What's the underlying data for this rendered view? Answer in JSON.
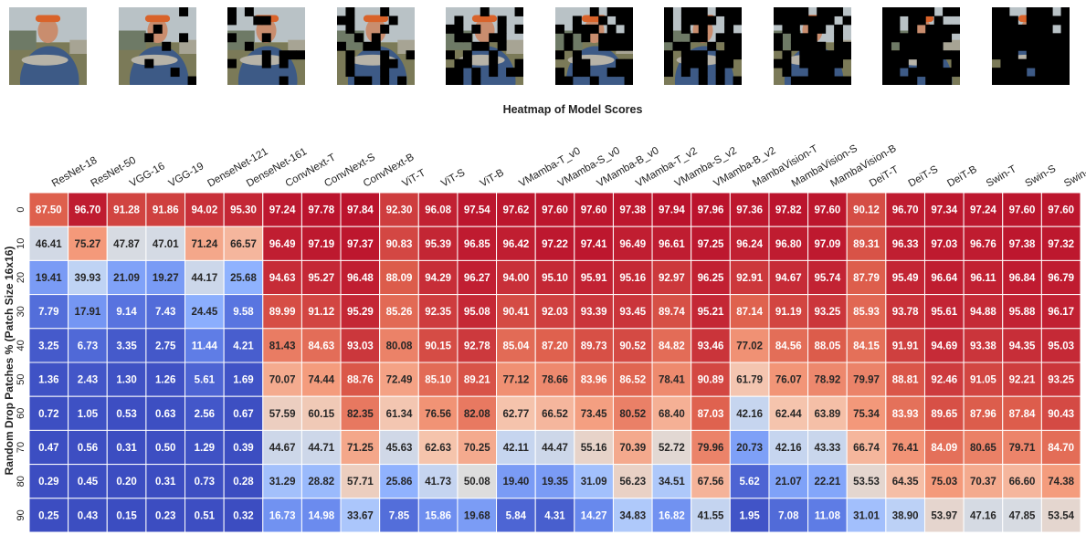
{
  "chart_data": {
    "type": "heatmap",
    "title": "Heatmap of Model Scores",
    "xlabel": "",
    "ylabel": "Random Drop Patches % (Patch Size 16x16)",
    "columns": [
      "ResNet-18",
      "ResNet-50",
      "VGG-16",
      "VGG-19",
      "DenseNet-121",
      "DenseNet-161",
      "ConvNext-T",
      "ConvNext-S",
      "ConvNext-B",
      "ViT-T",
      "ViT-S",
      "ViT-B",
      "VMamba-T_v0",
      "VMamba-S_v0",
      "VMamba-B_v0",
      "VMamba-T_v2",
      "VMamba-S_v2",
      "VMamba-B_v2",
      "MambaVision-T",
      "MambaVision-S",
      "MambaVision-B",
      "DeiT-T",
      "DeiT-S",
      "DeiT-B",
      "Swin-T",
      "Swin-S",
      "Swin-B"
    ],
    "rows": [
      "0",
      "10",
      "20",
      "30",
      "40",
      "50",
      "60",
      "70",
      "80",
      "90"
    ],
    "values": [
      [
        "87.50",
        "96.70",
        "91.28",
        "91.86",
        "94.02",
        "95.30",
        "97.24",
        "97.78",
        "97.84",
        "92.30",
        "96.08",
        "97.54",
        "97.62",
        "97.60",
        "97.60",
        "97.38",
        "97.94",
        "97.96",
        "97.36",
        "97.82",
        "97.60",
        "90.12",
        "96.70",
        "97.34",
        "97.24",
        "97.60",
        "97.60"
      ],
      [
        "46.41",
        "75.27",
        "47.87",
        "47.01",
        "71.24",
        "66.57",
        "96.49",
        "97.19",
        "97.37",
        "90.83",
        "95.39",
        "96.85",
        "96.42",
        "97.22",
        "97.41",
        "96.49",
        "96.61",
        "97.25",
        "96.24",
        "96.80",
        "97.09",
        "89.31",
        "96.33",
        "97.03",
        "96.76",
        "97.38",
        "97.32"
      ],
      [
        "19.41",
        "39.93",
        "21.09",
        "19.27",
        "44.17",
        "25.68",
        "94.63",
        "95.27",
        "96.48",
        "88.09",
        "94.29",
        "96.27",
        "94.00",
        "95.10",
        "95.91",
        "95.16",
        "92.97",
        "96.25",
        "92.91",
        "94.67",
        "95.74",
        "87.79",
        "95.49",
        "96.64",
        "96.11",
        "96.84",
        "96.79"
      ],
      [
        "7.79",
        "17.91",
        "9.14",
        "7.43",
        "24.45",
        "9.58",
        "89.99",
        "91.12",
        "95.29",
        "85.26",
        "92.35",
        "95.08",
        "90.41",
        "92.03",
        "93.39",
        "93.45",
        "89.74",
        "95.21",
        "87.14",
        "91.19",
        "93.25",
        "85.93",
        "93.78",
        "95.61",
        "94.88",
        "95.88",
        "96.17"
      ],
      [
        "3.25",
        "6.73",
        "3.35",
        "2.75",
        "11.44",
        "4.21",
        "81.43",
        "84.63",
        "93.03",
        "80.08",
        "90.15",
        "92.78",
        "85.04",
        "87.20",
        "89.73",
        "90.52",
        "84.82",
        "93.46",
        "77.02",
        "84.56",
        "88.05",
        "84.15",
        "91.91",
        "94.69",
        "93.38",
        "94.35",
        "95.03"
      ],
      [
        "1.36",
        "2.43",
        "1.30",
        "1.26",
        "5.61",
        "1.69",
        "70.07",
        "74.44",
        "88.76",
        "72.49",
        "85.10",
        "89.21",
        "77.12",
        "78.66",
        "83.96",
        "86.52",
        "78.41",
        "90.89",
        "61.79",
        "76.07",
        "78.92",
        "79.97",
        "88.81",
        "92.46",
        "91.05",
        "92.21",
        "93.25"
      ],
      [
        "0.72",
        "1.05",
        "0.53",
        "0.63",
        "2.56",
        "0.67",
        "57.59",
        "60.15",
        "82.35",
        "61.34",
        "76.56",
        "82.08",
        "62.77",
        "66.52",
        "73.45",
        "80.52",
        "68.40",
        "87.03",
        "42.16",
        "62.44",
        "63.89",
        "75.34",
        "83.93",
        "89.65",
        "87.96",
        "87.84",
        "90.43"
      ],
      [
        "0.47",
        "0.56",
        "0.31",
        "0.50",
        "1.29",
        "0.39",
        "44.67",
        "44.71",
        "71.25",
        "45.63",
        "62.63",
        "70.25",
        "42.11",
        "44.47",
        "55.16",
        "70.39",
        "52.72",
        "79.96",
        "20.73",
        "42.16",
        "43.33",
        "66.74",
        "76.41",
        "84.09",
        "80.65",
        "79.71",
        "84.70"
      ],
      [
        "0.29",
        "0.45",
        "0.20",
        "0.31",
        "0.73",
        "0.28",
        "31.29",
        "28.82",
        "57.71",
        "25.86",
        "41.73",
        "50.08",
        "19.40",
        "19.35",
        "31.09",
        "56.23",
        "34.51",
        "67.56",
        "5.62",
        "21.07",
        "22.21",
        "53.53",
        "64.35",
        "75.03",
        "70.37",
        "66.60",
        "74.38"
      ],
      [
        "0.25",
        "0.43",
        "0.15",
        "0.23",
        "0.51",
        "0.32",
        "16.73",
        "14.98",
        "33.67",
        "7.85",
        "15.86",
        "19.68",
        "5.84",
        "4.31",
        "14.27",
        "34.83",
        "16.82",
        "41.55",
        "1.95",
        "7.08",
        "11.08",
        "31.01",
        "38.90",
        "53.97",
        "47.16",
        "47.85",
        "53.54"
      ]
    ],
    "colormap": "coolwarm",
    "vmin": 0,
    "vmax": 100,
    "thumbnails": {
      "count": 10,
      "drop_fractions": [
        0,
        0.1,
        0.2,
        0.3,
        0.4,
        0.5,
        0.6,
        0.7,
        0.8,
        0.9
      ]
    }
  }
}
